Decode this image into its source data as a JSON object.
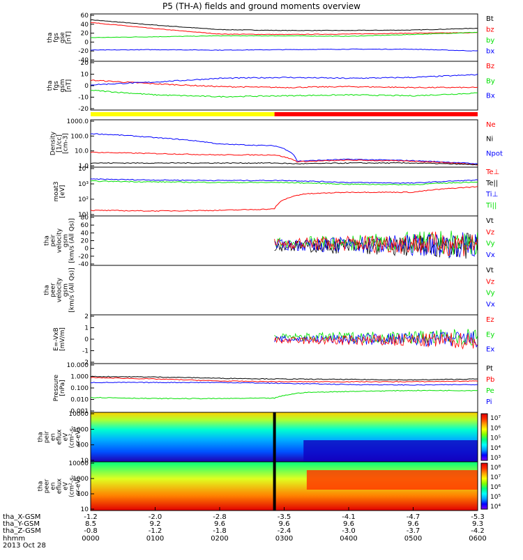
{
  "title": "P5 (TH-A) fields and ground moments overview",
  "colors": {
    "black": "#000000",
    "red": "#ff0000",
    "green": "#00e000",
    "blue": "#0000ff",
    "yellow": "#ffff00"
  },
  "panels": [
    {
      "id": "fgs-gse",
      "ylabel": [
        "tha",
        "fgs",
        "gse",
        "[nT]"
      ],
      "ticks": [
        "60",
        "40",
        "20",
        "0",
        "-20",
        "-40"
      ],
      "legend": [
        {
          "text": "Bt",
          "color": "black"
        },
        {
          "text": "bz",
          "color": "red"
        },
        {
          "text": "by",
          "color": "green"
        },
        {
          "text": "bx",
          "color": "blue"
        }
      ]
    },
    {
      "id": "fgs-gsm",
      "ylabel": [
        "tha",
        "fgs",
        "gsm",
        "[nT]"
      ],
      "ticks": [
        "20",
        "10",
        "0",
        "-10",
        "-20"
      ],
      "legend": [
        {
          "text": "Bz",
          "color": "red"
        },
        {
          "text": "By",
          "color": "green"
        },
        {
          "text": "Bx",
          "color": "blue"
        }
      ]
    },
    {
      "id": "density",
      "ylabel": [
        "Density",
        "[1/cc]",
        "[cm-3]"
      ],
      "ticks": [
        "1000.0",
        "100.0",
        "10.0",
        "1.0"
      ],
      "legend": [
        {
          "text": "Ne",
          "color": "red"
        },
        {
          "text": "Ni",
          "color": "black"
        },
        {
          "text": "Npot",
          "color": "blue"
        }
      ]
    },
    {
      "id": "temp",
      "ylabel": [
        "moat3",
        "[eV]"
      ],
      "ticks": [
        "10⁴",
        "10³",
        "10²",
        "10¹"
      ],
      "legend": [
        {
          "text": "Te⊥",
          "color": "red"
        },
        {
          "text": "Te||",
          "color": "black"
        },
        {
          "text": "Ti⊥",
          "color": "blue"
        },
        {
          "text": "Ti||",
          "color": "green"
        }
      ]
    },
    {
      "id": "peir-vel",
      "ylabel": [
        "tha",
        "peir",
        "velocity",
        "gsm",
        "[km/s (All Qs)]"
      ],
      "ticks": [
        "80",
        "60",
        "40",
        "20",
        "0",
        "-20",
        "-40"
      ],
      "legend": [
        {
          "text": "Vt",
          "color": "black"
        },
        {
          "text": "Vz",
          "color": "red"
        },
        {
          "text": "Vy",
          "color": "green"
        },
        {
          "text": "Vx",
          "color": "blue"
        }
      ]
    },
    {
      "id": "peer-vel",
      "ylabel": [
        "tha",
        "peer",
        "velocity",
        "gsm",
        "[km/s (All Qs)]"
      ],
      "ticks": [],
      "legend": [
        {
          "text": "Vt",
          "color": "black"
        },
        {
          "text": "Vz",
          "color": "red"
        },
        {
          "text": "Vy",
          "color": "green"
        },
        {
          "text": "Vx",
          "color": "blue"
        }
      ]
    },
    {
      "id": "efield",
      "ylabel": [
        "E=-VxB",
        "[mV/m]"
      ],
      "ticks": [
        "2",
        "1",
        "0",
        "-1",
        "-2"
      ],
      "legend": [
        {
          "text": "Ez",
          "color": "red"
        },
        {
          "text": "Ey",
          "color": "green"
        },
        {
          "text": "Ex",
          "color": "blue"
        }
      ]
    },
    {
      "id": "pressure",
      "ylabel": [
        "Pressure",
        "[nPa]"
      ],
      "ticks": [
        "10.000",
        "1.000",
        "0.100",
        "0.010",
        "0.001"
      ],
      "legend": [
        {
          "text": "Pt",
          "color": "black"
        },
        {
          "text": "Pb",
          "color": "red"
        },
        {
          "text": "Pe",
          "color": "green"
        },
        {
          "text": "Pi",
          "color": "blue"
        }
      ]
    },
    {
      "id": "peir-spec",
      "ylabel": [
        "tha",
        "peir",
        "en",
        "eflux",
        "eV",
        "(cm²-s-",
        "sr-eV)"
      ],
      "ticks": [
        "10000",
        "1000",
        "100",
        "10"
      ],
      "colorbar": [
        "10⁷",
        "10⁶",
        "10⁵",
        "10⁴",
        "10³"
      ]
    },
    {
      "id": "peer-spec",
      "ylabel": [
        "tha",
        "peer",
        "en",
        "eflux",
        "eV",
        "(cm²-s-",
        "sr-eV)"
      ],
      "ticks": [
        "10000",
        "1000",
        "100",
        "10"
      ],
      "colorbar": [
        "10⁸",
        "10⁷",
        "10⁶",
        "10⁵",
        "10⁴"
      ]
    }
  ],
  "x_axis": {
    "row_labels": [
      "tha_X-GSM",
      "tha_Y-GSM",
      "tha_Z-GSM",
      "hhmm",
      "2013 Oct 28"
    ],
    "columns": [
      {
        "x": "-1.2",
        "y": "8.5",
        "z": "-0.8",
        "t": "0000"
      },
      {
        "x": "-2.0",
        "y": "9.2",
        "z": "-1.2",
        "t": "0100"
      },
      {
        "x": "-2.8",
        "y": "9.6",
        "z": "-1.8",
        "t": "0200"
      },
      {
        "x": "-3.5",
        "y": "9.6",
        "z": "-2.4",
        "t": "0300"
      },
      {
        "x": "-4.1",
        "y": "9.6",
        "z": "-3.0",
        "t": "0400"
      },
      {
        "x": "-4.7",
        "y": "9.6",
        "z": "-3.7",
        "t": "0500"
      },
      {
        "x": "-5.3",
        "y": "9.3",
        "z": "-4.2",
        "t": "0600"
      }
    ]
  },
  "chart_data": {
    "type": "line",
    "title": "P5 (TH-A) fields and ground moments overview",
    "x_unit": "hhmm",
    "x_range": [
      "0000",
      "0600"
    ],
    "date": "2013 Oct 28",
    "series": [
      {
        "panel": "fgs-gse",
        "name": "Bt",
        "x": [
          0,
          1,
          2,
          3,
          4,
          5,
          6
        ],
        "values": [
          50,
          38,
          28,
          26,
          26,
          27,
          31
        ]
      },
      {
        "panel": "fgs-gse",
        "name": "bz",
        "x": [
          0,
          1,
          2,
          3,
          4,
          5,
          6
        ],
        "values": [
          44,
          30,
          18,
          17,
          18,
          20,
          21
        ]
      },
      {
        "panel": "fgs-gse",
        "name": "by",
        "x": [
          0,
          1,
          2,
          3,
          4,
          5,
          6
        ],
        "values": [
          10,
          12,
          14,
          14,
          13,
          17,
          22
        ]
      },
      {
        "panel": "fgs-gse",
        "name": "bx",
        "x": [
          0,
          1,
          2,
          3,
          4,
          5,
          6
        ],
        "values": [
          -18,
          -17,
          -18,
          -17,
          -16,
          -16,
          -20
        ]
      },
      {
        "panel": "fgs-gsm",
        "name": "Bz",
        "x": [
          0,
          1,
          2,
          3,
          4,
          5,
          6
        ],
        "values": [
          6,
          2,
          -1,
          -2,
          -1,
          -2,
          -2
        ]
      },
      {
        "panel": "fgs-gsm",
        "name": "By",
        "x": [
          0,
          1,
          2,
          3,
          4,
          5,
          6
        ],
        "values": [
          -5,
          -10,
          -12,
          -11,
          -10,
          -11,
          -8
        ]
      },
      {
        "panel": "fgs-gsm",
        "name": "Bx",
        "x": [
          0,
          1,
          2,
          3,
          4,
          5,
          6
        ],
        "values": [
          1,
          4,
          8,
          9,
          8,
          9,
          12
        ]
      },
      {
        "panel": "density",
        "name": "Npot",
        "x": [
          0,
          1,
          2,
          2.85,
          3.2,
          4,
          5,
          6
        ],
        "values": [
          120,
          60,
          20,
          15,
          1.1,
          1.5,
          1.2,
          0.7
        ]
      },
      {
        "panel": "density",
        "name": "Ne",
        "x": [
          0,
          1,
          2,
          2.85,
          3.2,
          4,
          5,
          6
        ],
        "values": [
          5,
          4,
          3.2,
          3.2,
          1.0,
          1.3,
          1.1,
          0.6
        ]
      },
      {
        "panel": "density",
        "name": "Ni",
        "x": [
          0,
          1,
          2,
          2.85,
          3.2,
          4,
          5,
          6
        ],
        "values": [
          0.8,
          0.8,
          0.8,
          0.8,
          0.7,
          0.8,
          0.8,
          0.6
        ]
      },
      {
        "panel": "temp",
        "name": "Ti⊥",
        "x": [
          0,
          1,
          2,
          3,
          4,
          5,
          6
        ],
        "values": [
          3500,
          3000,
          2800,
          2800,
          2000,
          1800,
          3000
        ]
      },
      {
        "panel": "temp",
        "name": "Ti||",
        "x": [
          0,
          1,
          2,
          3,
          4,
          5,
          6
        ],
        "values": [
          2500,
          2200,
          2000,
          2000,
          1500,
          1400,
          2200
        ]
      },
      {
        "panel": "temp",
        "name": "Te⊥",
        "x": [
          0,
          1,
          2,
          2.85,
          3.3,
          4,
          5,
          6
        ],
        "values": [
          20,
          18,
          20,
          25,
          300,
          400,
          400,
          1000
        ]
      },
      {
        "panel": "pressure",
        "name": "Pt",
        "x": [
          0,
          1,
          2,
          3,
          4,
          5,
          6
        ],
        "values": [
          1.0,
          0.9,
          0.7,
          0.6,
          0.55,
          0.5,
          0.6
        ]
      },
      {
        "panel": "pressure",
        "name": "Pb",
        "x": [
          0,
          1,
          2,
          3,
          4,
          5,
          6
        ],
        "values": [
          0.8,
          0.6,
          0.4,
          0.35,
          0.35,
          0.35,
          0.4
        ]
      },
      {
        "panel": "pressure",
        "name": "Pi",
        "x": [
          0,
          1,
          2,
          3,
          4,
          5,
          6
        ],
        "values": [
          0.3,
          0.3,
          0.3,
          0.25,
          0.2,
          0.18,
          0.2
        ]
      },
      {
        "panel": "pressure",
        "name": "Pe",
        "x": [
          0,
          1,
          2,
          2.85,
          3.3,
          4,
          5,
          6
        ],
        "values": [
          0.015,
          0.012,
          0.012,
          0.013,
          0.04,
          0.05,
          0.06,
          0.06
        ]
      }
    ]
  }
}
